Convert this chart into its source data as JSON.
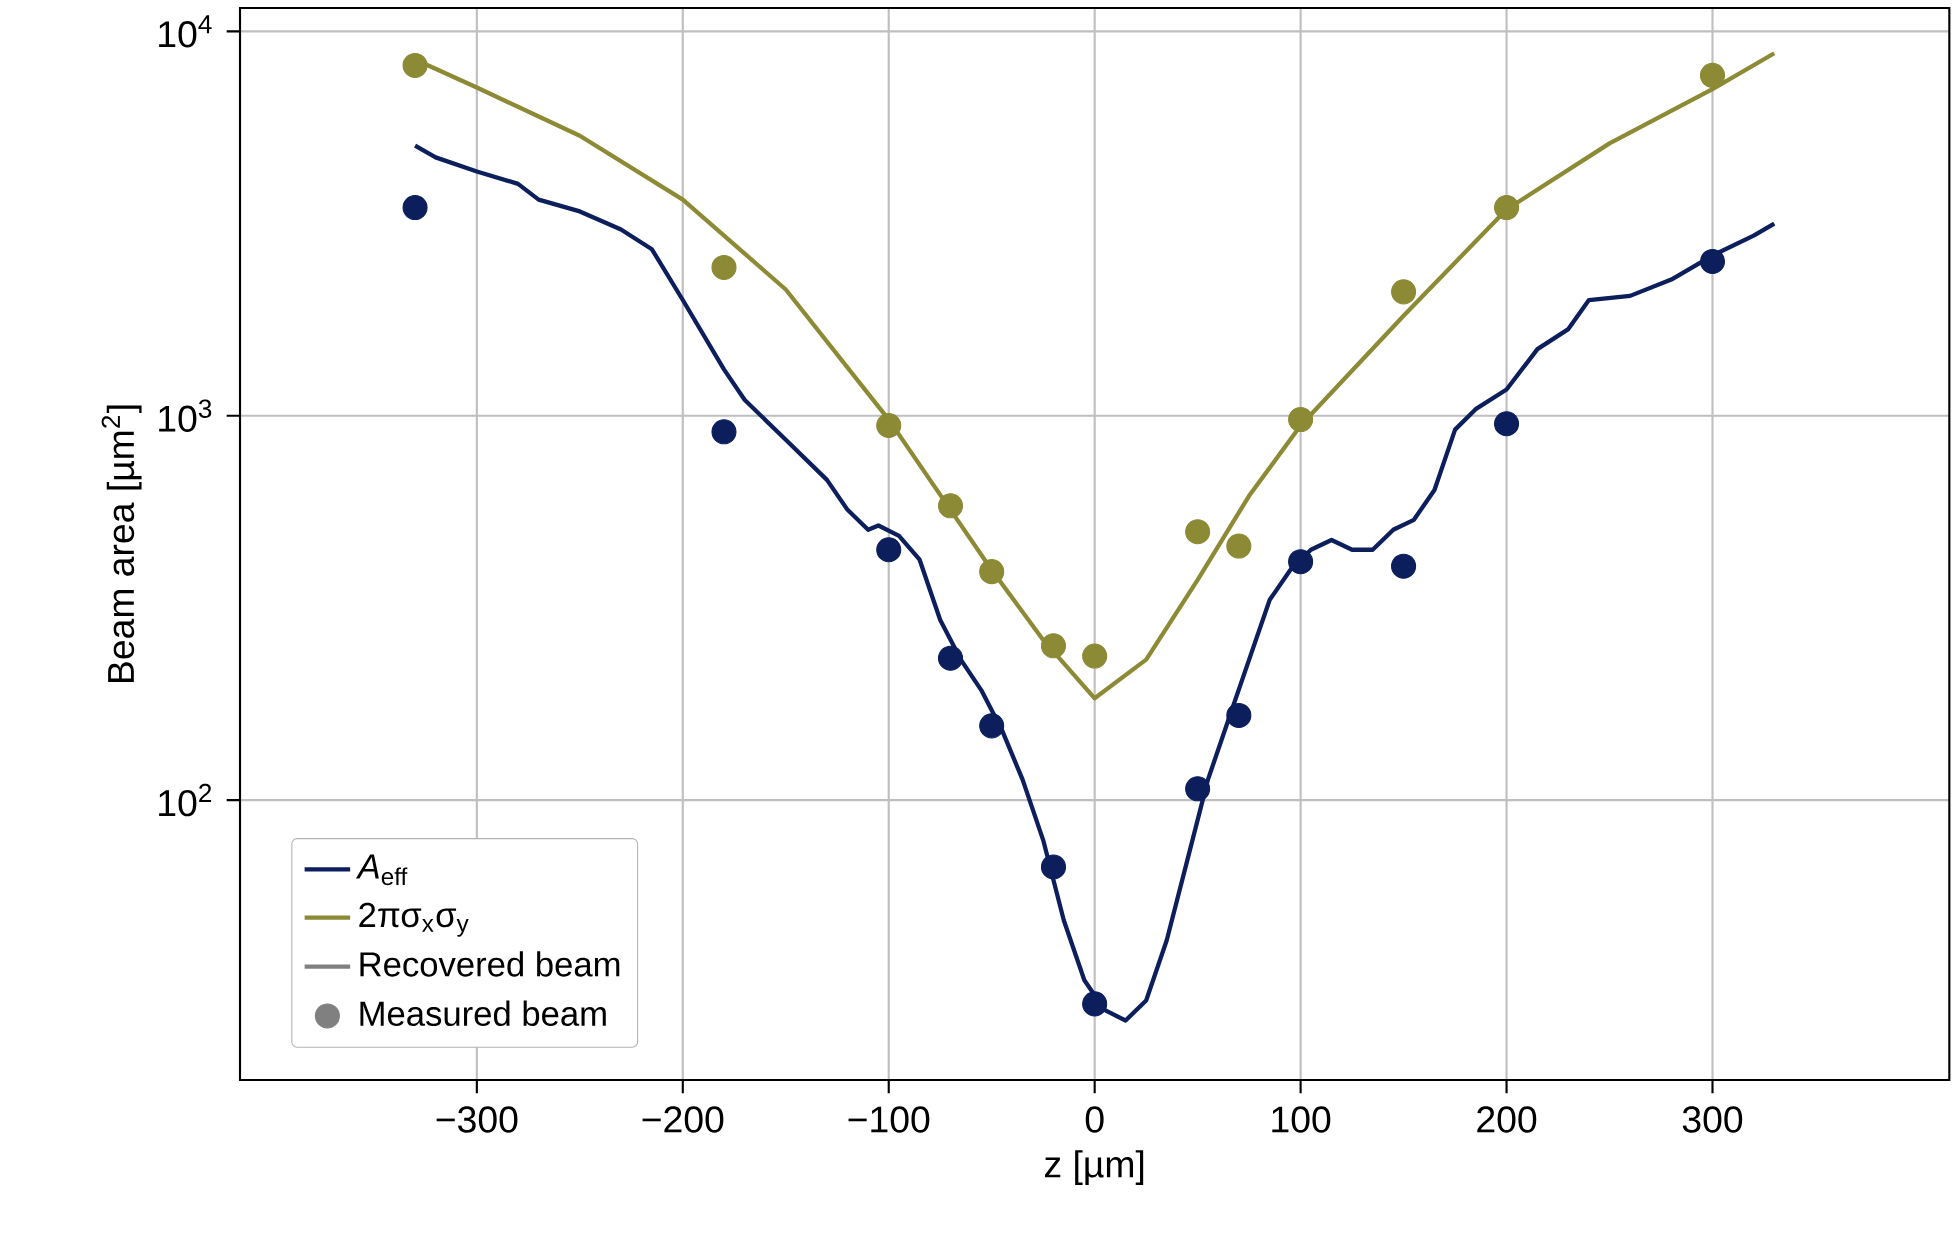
{
  "chart_data": {
    "type": "line",
    "xlabel": "z [µm]",
    "ylabel": "Beam area [µm$^{2}$]",
    "xlim": [
      -415,
      415
    ],
    "ylim": [
      18.7,
      11500
    ],
    "log": "y",
    "grid": true,
    "legend": "bottom left",
    "xticks": [
      {
        "value": -300,
        "label": "−300"
      },
      {
        "value": -200,
        "label": "−200"
      },
      {
        "value": -100,
        "label": "−100"
      },
      0,
      100,
      200,
      300
    ],
    "yticks": [
      {
        "value": 100,
        "label": "10$^{2}$"
      },
      {
        "value": 1000,
        "label": "10$^{3}$"
      },
      {
        "value": 10000,
        "label": "10$^{4}$"
      }
    ],
    "series": [
      {
        "name": "*A*$_{eff}$",
        "type": "line",
        "color": "#0c1e5c",
        "x": [
          -330,
          -320,
          -300,
          -280,
          -270,
          -250,
          -230,
          -215,
          -200,
          -180,
          -170,
          -150,
          -130,
          -120,
          -110,
          -105,
          -95,
          -85,
          -75,
          -65,
          -55,
          -45,
          -35,
          -25,
          -15,
          -5,
          5,
          15,
          25,
          35,
          45,
          55,
          65,
          75,
          85,
          95,
          105,
          115,
          125,
          135,
          145,
          155,
          165,
          175,
          185,
          200,
          215,
          230,
          240,
          260,
          280,
          300,
          320,
          330
        ],
        "values": [
          5040,
          4700,
          4320,
          4010,
          3650,
          3400,
          3050,
          2710,
          2000,
          1320,
          1100,
          866,
          681,
          569,
          505,
          518,
          487,
          422,
          294,
          232,
          193,
          152,
          113,
          78.7,
          48.7,
          34,
          28.4,
          26.7,
          30.1,
          43.2,
          69.8,
          113,
          162,
          232,
          332,
          397,
          448,
          475,
          448,
          448,
          505,
          536,
          641,
          920,
          1040,
          1170,
          1490,
          1680,
          2000,
          2050,
          2260,
          2610,
          2940,
          3160
        ]
      },
      {
        "name": "2πσ$_{x}$σ$_{y}$",
        "type": "line",
        "color": "#8c8a35",
        "x": [
          -330,
          -300,
          -250,
          -200,
          -150,
          -100,
          -70,
          -50,
          -25,
          0,
          25,
          50,
          75,
          100,
          150,
          200,
          250,
          300,
          330
        ],
        "values": [
          8450,
          7140,
          5350,
          3650,
          2130,
          977,
          569,
          397,
          261,
          184,
          232,
          374,
          619,
          943,
          1820,
          3440,
          5110,
          7070,
          8770
        ]
      },
      {
        "type": "scatter",
        "marker": "circle",
        "color": "#0c1e5c",
        "x": [
          -330,
          -180,
          -100,
          -70,
          -50,
          -20,
          0,
          50,
          70,
          100,
          150,
          200,
          300
        ],
        "values": [
          3480,
          908,
          448,
          234,
          156,
          67,
          29.5,
          107,
          166,
          417,
          406,
          953,
          2520
        ]
      },
      {
        "type": "scatter",
        "marker": "circle",
        "color": "#8c8a35",
        "x": [
          -330,
          -180,
          -100,
          -70,
          -50,
          -20,
          0,
          50,
          70,
          100,
          150,
          200,
          300
        ],
        "values": [
          8150,
          2430,
          943,
          583,
          393,
          252,
          237,
          499,
          458,
          977,
          2100,
          3480,
          7680
        ]
      },
      {
        "name": "Recovered beam",
        "type": "line",
        "color": "#808080"
      },
      {
        "name": "Measured beam",
        "type": "scatter",
        "marker": "circle",
        "color": "#808080"
      }
    ]
  }
}
